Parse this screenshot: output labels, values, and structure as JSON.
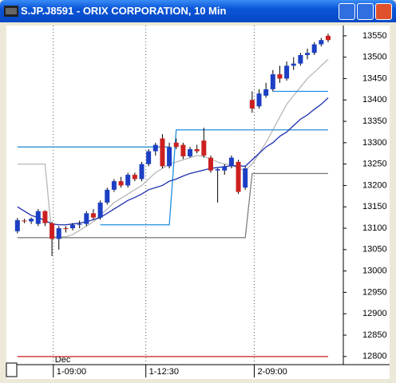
{
  "chart_data": {
    "type": "candlestick",
    "title": "S.JP.J8591 - ORIX CORPORATION, 10 Min",
    "period_label": "Dec",
    "x": [
      0,
      1,
      2,
      3,
      4,
      5,
      6,
      7,
      8,
      9,
      10,
      11,
      12,
      13,
      14,
      15,
      16,
      17,
      18,
      19,
      20,
      21,
      22,
      23,
      24,
      25,
      26,
      27,
      28,
      29,
      30,
      31,
      32,
      33,
      34,
      35,
      36,
      37,
      38,
      39,
      40,
      41,
      42,
      43,
      44,
      45
    ],
    "open": [
      13093,
      13118,
      13116,
      13110,
      13140,
      13112,
      13075,
      13100,
      13100,
      13108,
      13110,
      13135,
      13125,
      13160,
      13190,
      13210,
      13200,
      13225,
      13215,
      13250,
      13280,
      13310,
      13245,
      13300,
      13295,
      13268,
      13285,
      13305,
      13265,
      13235,
      13235,
      13245,
      13255,
      13195,
      13400,
      13385,
      13410,
      13425,
      13460,
      13450,
      13480,
      13485,
      13505,
      13510,
      13530,
      13550
    ],
    "high": [
      13124,
      13122,
      13125,
      13145,
      13142,
      13115,
      13105,
      13105,
      13112,
      13118,
      13140,
      13145,
      13165,
      13195,
      13215,
      13220,
      13230,
      13230,
      13255,
      13285,
      13300,
      13320,
      13300,
      13310,
      13300,
      13290,
      13295,
      13335,
      13270,
      13240,
      13250,
      13270,
      13260,
      13245,
      13420,
      13425,
      13440,
      13470,
      13480,
      13490,
      13500,
      13510,
      13520,
      13535,
      13545,
      13555
    ],
    "low": [
      13088,
      13112,
      13110,
      13105,
      13105,
      13035,
      13050,
      13090,
      13095,
      13100,
      13105,
      13120,
      13120,
      13155,
      13185,
      13195,
      13195,
      13210,
      13210,
      13245,
      13270,
      13240,
      13240,
      13285,
      13262,
      13265,
      13275,
      13265,
      13230,
      13160,
      13225,
      13240,
      13180,
      13190,
      13370,
      13380,
      13405,
      13420,
      13440,
      13445,
      13470,
      13480,
      13495,
      13505,
      13525,
      13535
    ],
    "close": [
      13119,
      13116,
      13122,
      13140,
      13112,
      13075,
      13100,
      13098,
      13108,
      13110,
      13135,
      13125,
      13160,
      13190,
      13210,
      13200,
      13225,
      13215,
      13250,
      13280,
      13295,
      13245,
      13290,
      13290,
      13268,
      13285,
      13280,
      13270,
      13235,
      13238,
      13245,
      13265,
      13185,
      13240,
      13380,
      13415,
      13425,
      13460,
      13450,
      13480,
      13485,
      13505,
      13510,
      13530,
      13540,
      13540
    ],
    "up_color": "#1c3fc4",
    "down_color": "#cc2020",
    "lines": [
      {
        "color": "#b8b8b8",
        "values": [
          13250,
          13250,
          13250,
          13250,
          13250,
          13080,
          13080,
          13080,
          13085,
          13095,
          13105,
          13115,
          13130,
          13145,
          13160,
          13170,
          13180,
          13190,
          13200,
          13215,
          13230,
          13240,
          13250,
          13255,
          13260,
          13265,
          13270,
          13268,
          13262,
          13255,
          13250,
          13248,
          13240,
          13235,
          13250,
          13275,
          13300,
          13330,
          13360,
          13390,
          13410,
          13430,
          13450,
          13465,
          13480,
          13495
        ]
      },
      {
        "color": "#808080",
        "values": [
          13078,
          13078,
          13078,
          13078,
          13078,
          13078,
          13078,
          13078,
          13078,
          13078,
          13078,
          13078,
          13078,
          13078,
          13078,
          13078,
          13078,
          13078,
          13078,
          13078,
          13078,
          13078,
          13078,
          13078,
          13078,
          13078,
          13078,
          13078,
          13078,
          13078,
          13078,
          13078,
          13078,
          13078,
          13228,
          13228,
          13228,
          13228,
          13228,
          13228,
          13228,
          13228,
          13228,
          13228,
          13228,
          13228
        ]
      },
      {
        "color": "#1e90e0",
        "values": [
          null,
          null,
          null,
          null,
          null,
          null,
          null,
          null,
          null,
          null,
          null,
          null,
          13108,
          13108,
          13108,
          13108,
          13108,
          13108,
          13108,
          13108,
          13108,
          13108,
          13108,
          13330,
          13330,
          13330,
          13330,
          13330,
          13330,
          13330,
          13330,
          13330,
          null,
          null,
          null,
          null,
          null,
          null,
          null,
          null,
          null,
          null,
          null,
          null,
          null,
          null
        ]
      },
      {
        "color": "#2a8fd0",
        "values": [
          13290,
          13290,
          13290,
          13290,
          13290,
          13290,
          13290,
          13290,
          13290,
          13290,
          13290,
          13290,
          13290,
          13290,
          13290,
          13290,
          13290,
          13290,
          13290,
          13290,
          13290,
          13290,
          13290,
          null,
          null,
          null,
          null,
          null,
          null,
          null,
          null,
          13330,
          13330,
          13330,
          13330,
          13330,
          13330,
          13330,
          13330,
          13330,
          13330,
          13330,
          13330,
          13330,
          13330,
          13330
        ]
      },
      {
        "color": "#1e90e0",
        "values": [
          null,
          null,
          null,
          null,
          null,
          null,
          null,
          null,
          null,
          null,
          null,
          null,
          null,
          null,
          null,
          null,
          null,
          null,
          null,
          null,
          null,
          null,
          null,
          null,
          null,
          null,
          null,
          null,
          null,
          null,
          null,
          null,
          null,
          null,
          null,
          null,
          null,
          13420,
          13420,
          13420,
          13420,
          13420,
          13420,
          13420,
          13420,
          13420
        ]
      },
      {
        "color": "#1a2fb0",
        "values": [
          13150,
          13140,
          13130,
          13125,
          13118,
          13110,
          13108,
          13108,
          13110,
          13112,
          13115,
          13120,
          13125,
          13135,
          13145,
          13155,
          13165,
          13172,
          13180,
          13190,
          13195,
          13200,
          13210,
          13215,
          13222,
          13228,
          13232,
          13236,
          13240,
          13242,
          13244,
          13246,
          13246,
          13245,
          13260,
          13275,
          13290,
          13300,
          13315,
          13325,
          13340,
          13355,
          13365,
          13378,
          13390,
          13405
        ]
      },
      {
        "color": "#d03030",
        "values": [
          12800,
          12800,
          12800,
          12800,
          12800,
          12800,
          12800,
          12800,
          12800,
          12800,
          12800,
          12800,
          12800,
          12800,
          12800,
          12800,
          12800,
          12800,
          12800,
          12800,
          12800,
          12800,
          12800,
          12800,
          12800,
          12800,
          12800,
          12800,
          12800,
          12800,
          12800,
          12800,
          12800,
          12800,
          12800,
          12800,
          12800,
          12800,
          12800,
          12800,
          12800,
          12800,
          12800,
          12800,
          12800,
          12800
        ]
      }
    ],
    "xlim": [
      -1.6,
      47.2
    ],
    "xticks": [
      {
        "value": 5.2,
        "label": "1-09:00"
      },
      {
        "value": 18.6,
        "label": "1-12:30"
      },
      {
        "value": 34.3,
        "label": "2-09:00"
      }
    ],
    "ylim": [
      12781,
      13574
    ],
    "yticks": [
      12800,
      12850,
      12900,
      12950,
      13000,
      13050,
      13100,
      13150,
      13200,
      13250,
      13300,
      13350,
      13400,
      13450,
      13500,
      13550
    ],
    "grid": true
  }
}
